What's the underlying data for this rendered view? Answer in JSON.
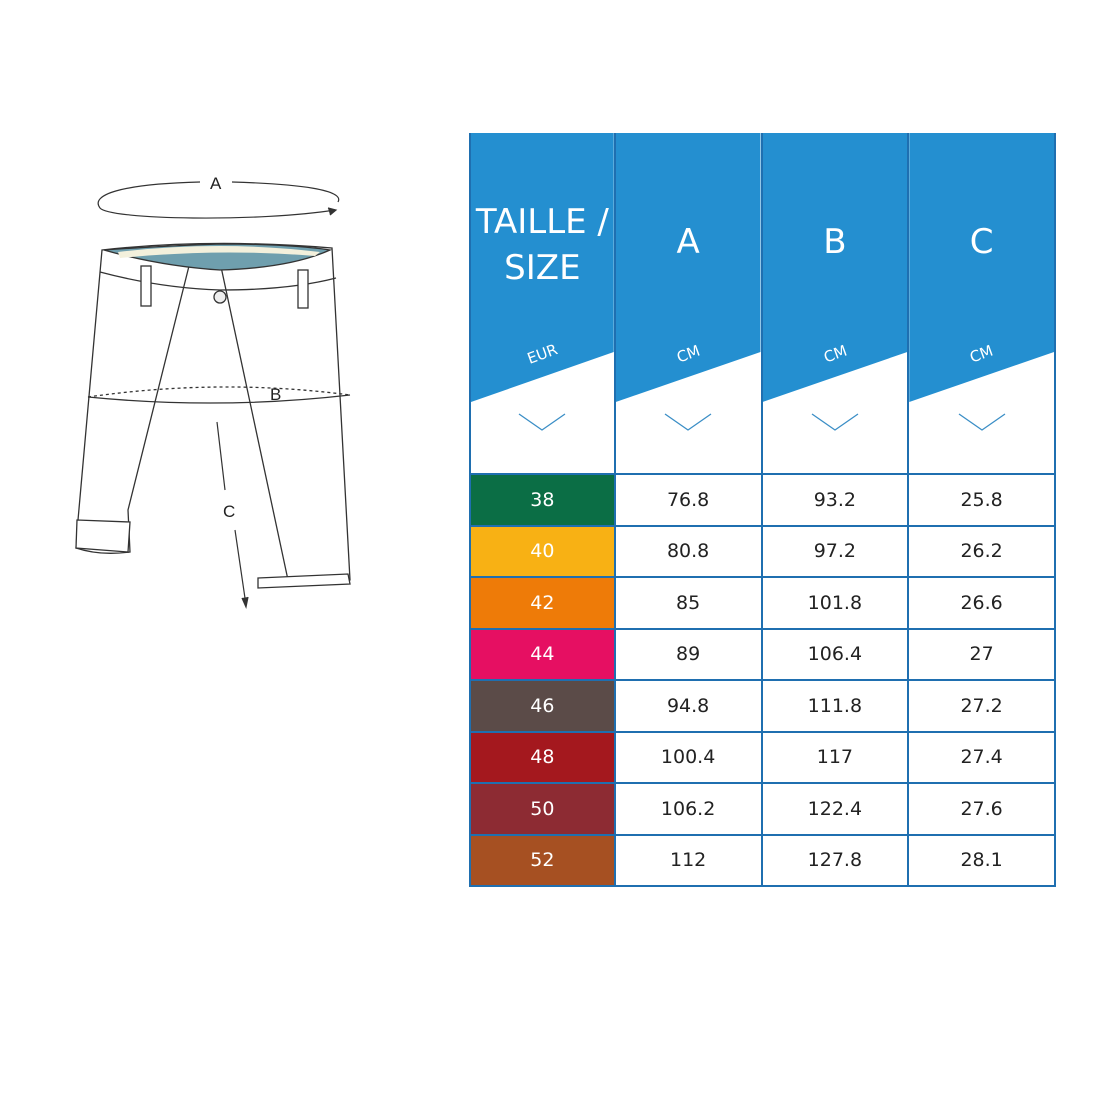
{
  "diagram": {
    "labels": {
      "a": "A",
      "b": "B",
      "c": "C"
    }
  },
  "table": {
    "header_color": "#248fd0",
    "columns": [
      {
        "title": "TAILLE / SIZE",
        "unit": "EUR"
      },
      {
        "title": "A",
        "unit": "CM"
      },
      {
        "title": "B",
        "unit": "CM"
      },
      {
        "title": "C",
        "unit": "CM"
      }
    ],
    "rows": [
      {
        "size": "38",
        "color": "#0b6e45",
        "a": "76.8",
        "b": "93.2",
        "c": "25.8"
      },
      {
        "size": "40",
        "color": "#f8b114",
        "a": "80.8",
        "b": "97.2",
        "c": "26.2"
      },
      {
        "size": "42",
        "color": "#ee7b08",
        "a": "85",
        "b": "101.8",
        "c": "26.6"
      },
      {
        "size": "44",
        "color": "#e60f62",
        "a": "89",
        "b": "106.4",
        "c": "27"
      },
      {
        "size": "46",
        "color": "#5b4b48",
        "a": "94.8",
        "b": "111.8",
        "c": "27.2"
      },
      {
        "size": "48",
        "color": "#a4181e",
        "a": "100.4",
        "b": "117",
        "c": "27.4"
      },
      {
        "size": "50",
        "color": "#8d2b33",
        "a": "106.2",
        "b": "122.4",
        "c": "27.6"
      },
      {
        "size": "52",
        "color": "#a65022",
        "a": "112",
        "b": "127.8",
        "c": "28.1"
      }
    ]
  }
}
